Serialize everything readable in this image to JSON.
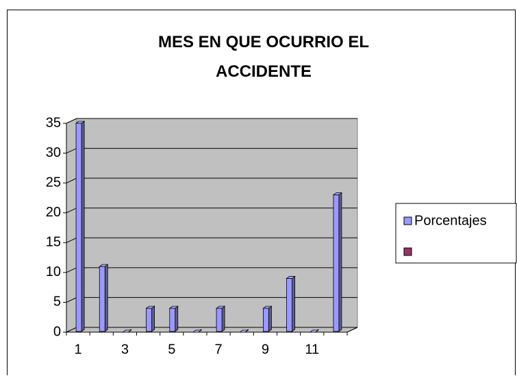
{
  "chart_data": {
    "type": "bar3d",
    "title": "MES EN QUE OCURRIO EL ACCIDENTE",
    "categories": [
      1,
      null,
      3,
      null,
      5,
      null,
      7,
      null,
      9,
      null,
      11,
      null
    ],
    "series": [
      {
        "name": "Porcentajes",
        "color": "#9999ff",
        "values": [
          35,
          11,
          0,
          4,
          4,
          0,
          4,
          0,
          4,
          9,
          0,
          23
        ]
      },
      {
        "color": "#993366",
        "values": [
          null,
          null,
          null,
          null,
          null,
          null,
          null,
          null,
          null,
          null,
          null,
          null
        ]
      }
    ],
    "ylim": [
      0,
      35
    ],
    "yticks": [
      0,
      5,
      10,
      15,
      20,
      25,
      30,
      35
    ],
    "grid": true,
    "legend": "right"
  }
}
